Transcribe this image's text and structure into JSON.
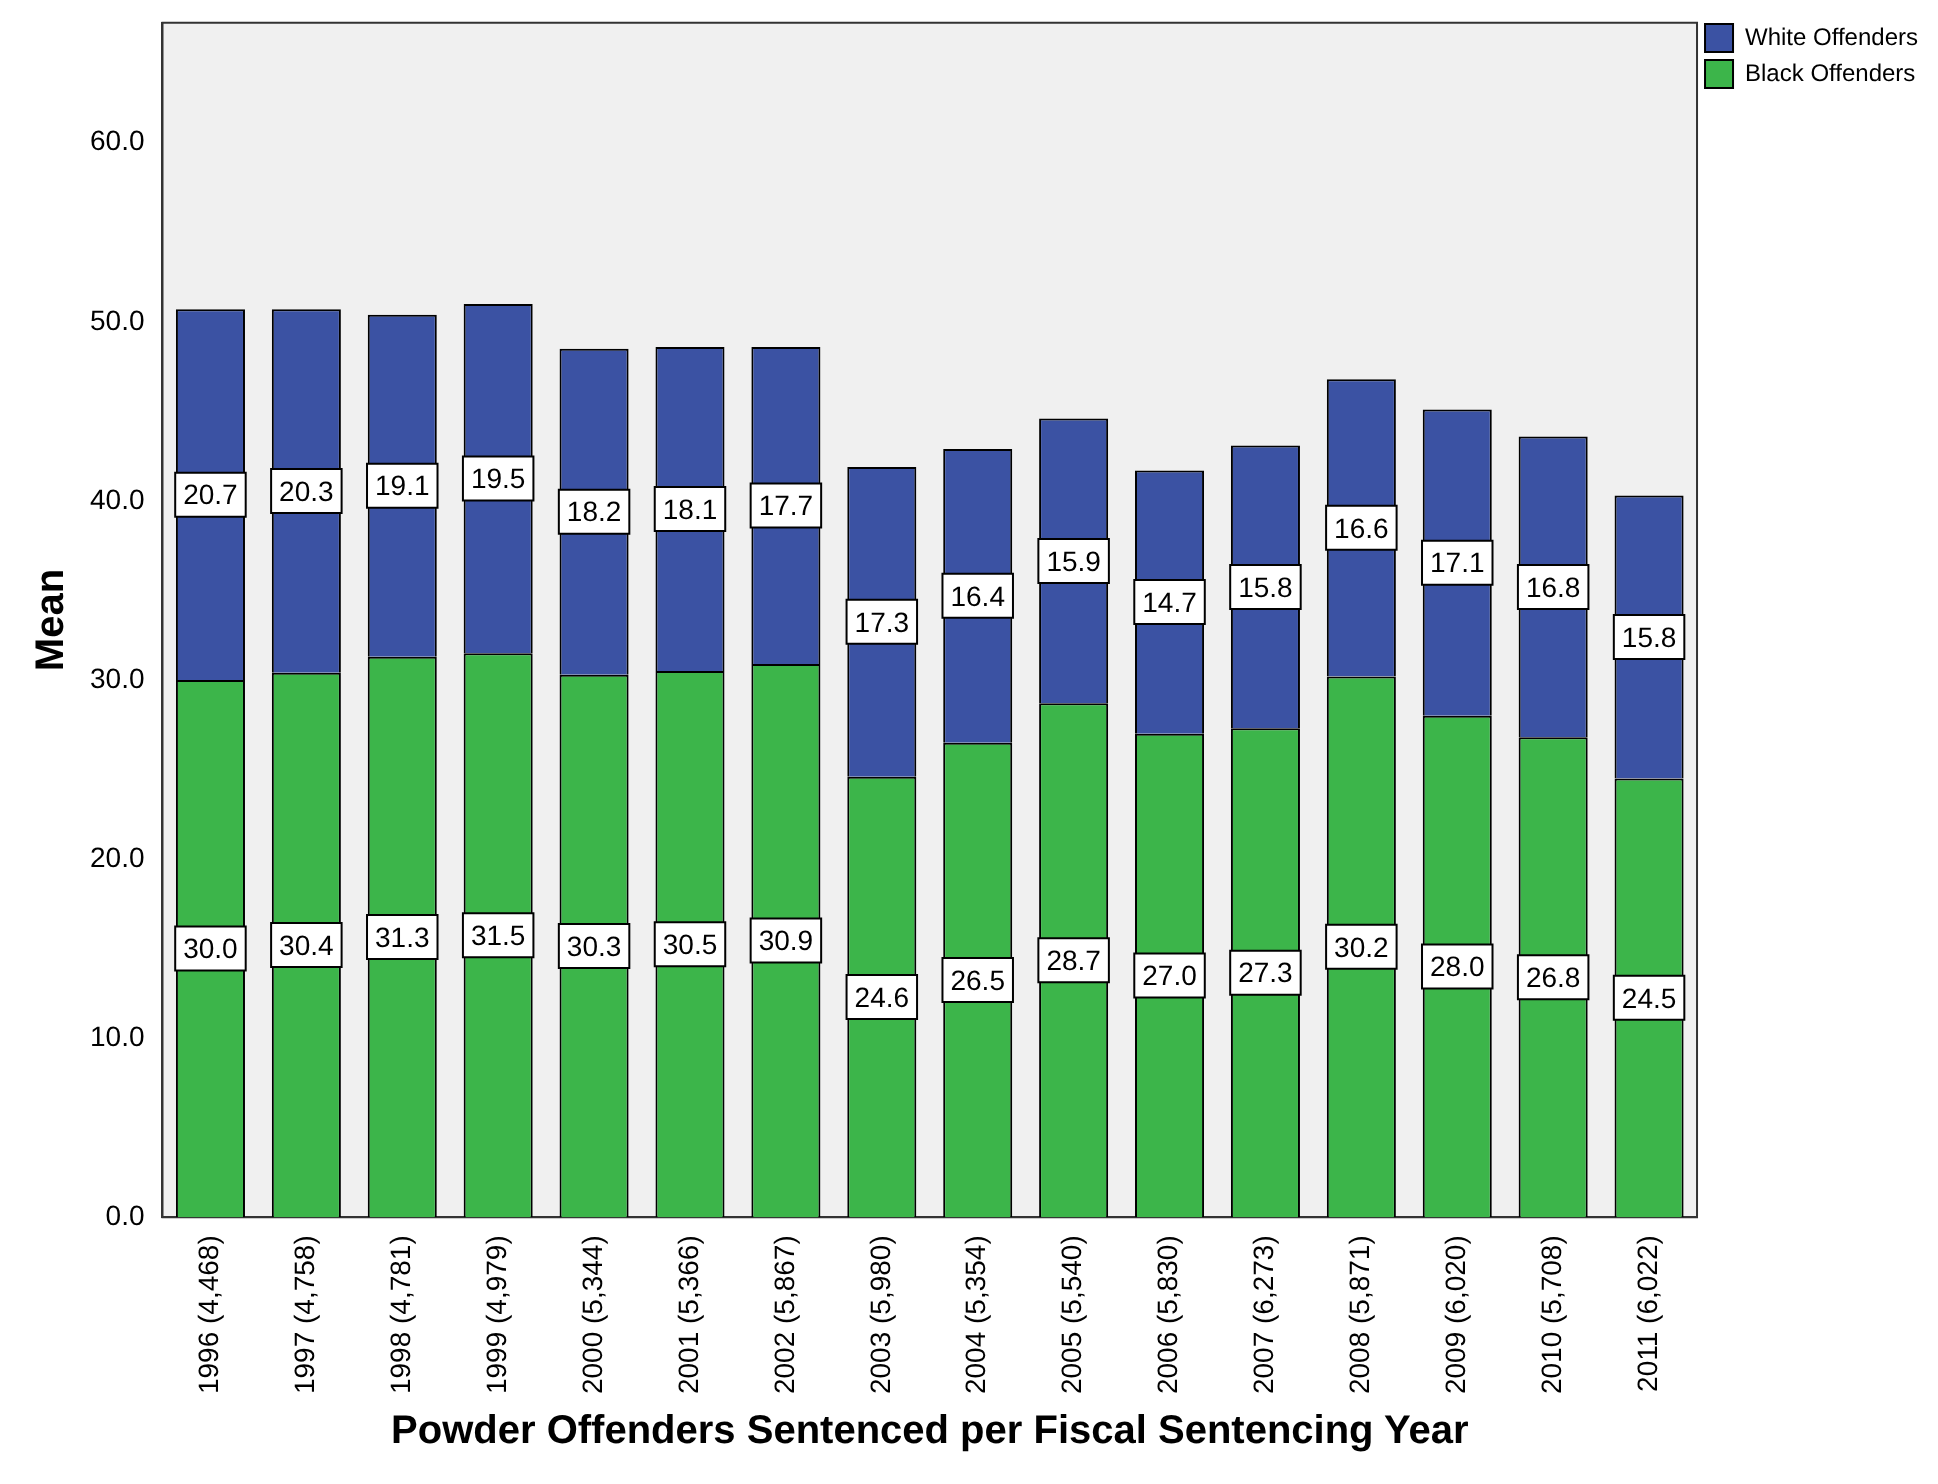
{
  "chart_data": {
    "type": "bar",
    "stacked": true,
    "xlabel": "Powder Offenders Sentenced per Fiscal Sentencing Year",
    "ylabel": "Mean",
    "categories": [
      "1996 (4,468)",
      "1997 (4,758)",
      "1998 (4,781)",
      "1999 (4,979)",
      "2000 (5,344)",
      "2001 (5,366)",
      "2002 (5,867)",
      "2003 (5,980)",
      "2004 (5,354)",
      "2005 (5,540)",
      "2006 (5,830)",
      "2007 (6,273)",
      "2008 (5,871)",
      "2009 (6,020)",
      "2010 (5,708)",
      "2011 (6,022)"
    ],
    "series": [
      {
        "name": "Black Offenders",
        "color": "#3cb54a",
        "values": [
          30.0,
          30.4,
          31.3,
          31.5,
          30.3,
          30.5,
          30.9,
          24.6,
          26.5,
          28.7,
          27.0,
          27.3,
          30.2,
          28.0,
          26.8,
          24.5
        ],
        "value_labels": [
          "30.0",
          "30.4",
          "31.3",
          "31.5",
          "30.3",
          "30.5",
          "30.9",
          "24.6",
          "26.5",
          "28.7",
          "27.0",
          "27.3",
          "30.2",
          "28.0",
          "26.8",
          "24.5"
        ]
      },
      {
        "name": "White Offenders",
        "color": "#3b52a3",
        "values": [
          20.7,
          20.3,
          19.1,
          19.5,
          18.2,
          18.1,
          17.7,
          17.3,
          16.4,
          15.9,
          14.7,
          15.8,
          16.6,
          17.1,
          16.8,
          15.8
        ],
        "value_labels": [
          "20.7",
          "20.3",
          "19.1",
          "19.5",
          "18.2",
          "18.1",
          "17.7",
          "17.3",
          "16.4",
          "15.9",
          "14.7",
          "15.8",
          "16.6",
          "17.1",
          "16.8",
          "15.8"
        ]
      }
    ],
    "ylim": [
      0,
      66.7
    ],
    "yticks": [
      {
        "value": 0,
        "label": "0.0"
      },
      {
        "value": 10,
        "label": "10.0"
      },
      {
        "value": 20,
        "label": "20.0"
      },
      {
        "value": 30,
        "label": "30.0"
      },
      {
        "value": 40,
        "label": "40.0"
      },
      {
        "value": 50,
        "label": "50.0"
      },
      {
        "value": 60,
        "label": "60.0"
      }
    ],
    "grid": false,
    "legend": "top right"
  }
}
